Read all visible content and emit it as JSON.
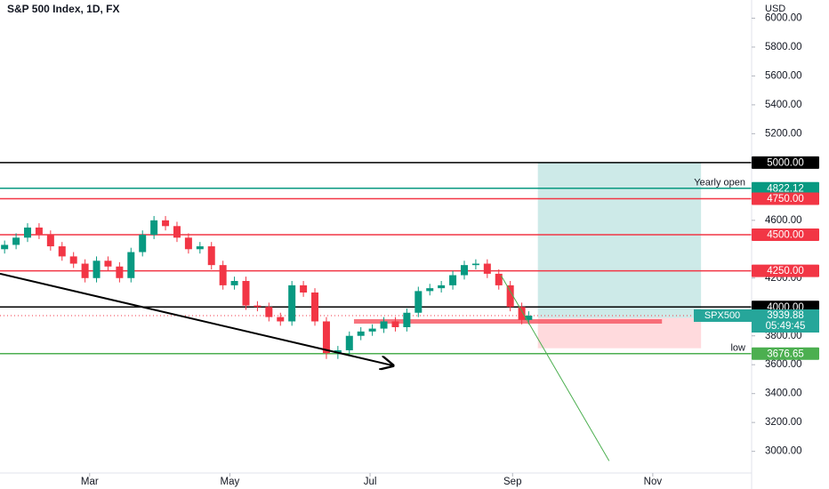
{
  "chart_data": {
    "type": "candlestick",
    "title": "S&P 500 Index, 1D, FX",
    "currency": "USD",
    "up_color": "#089981",
    "down_color": "#f23645",
    "x": [
      22,
      27,
      32,
      37,
      42,
      47,
      52,
      57,
      62,
      67,
      72,
      77,
      82,
      87,
      92,
      97,
      102,
      107,
      112,
      117,
      122,
      127,
      132,
      137,
      142,
      147,
      152,
      157,
      162,
      167,
      172,
      177,
      182,
      187,
      192,
      197,
      202,
      207,
      212,
      217,
      222,
      227,
      232,
      237,
      242,
      247,
      250
    ],
    "open": [
      4400,
      4430,
      4480,
      4550,
      4500,
      4420,
      4350,
      4300,
      4200,
      4320,
      4280,
      4200,
      4380,
      4500,
      4600,
      4560,
      4480,
      4400,
      4420,
      4290,
      4150,
      4180,
      4010,
      4000,
      3930,
      3900,
      4150,
      4100,
      3900,
      3680,
      3700,
      3800,
      3830,
      3850,
      3900,
      3860,
      3960,
      4110,
      4130,
      4150,
      4220,
      4290,
      4300,
      4230,
      4150,
      4000,
      3910
    ],
    "high": [
      4460,
      4510,
      4580,
      4580,
      4530,
      4450,
      4380,
      4330,
      4350,
      4350,
      4310,
      4410,
      4530,
      4630,
      4630,
      4590,
      4510,
      4450,
      4450,
      4320,
      4210,
      4210,
      4040,
      4030,
      3960,
      4180,
      4180,
      4130,
      3930,
      3730,
      3830,
      3860,
      3880,
      3930,
      3930,
      3990,
      4140,
      4160,
      4180,
      4250,
      4320,
      4330,
      4330,
      4260,
      4180,
      4030,
      3970
    ],
    "low": [
      4370,
      4400,
      4450,
      4470,
      4390,
      4320,
      4270,
      4170,
      4170,
      4250,
      4170,
      4170,
      4350,
      4470,
      4530,
      4450,
      4370,
      4370,
      4260,
      4120,
      4120,
      3980,
      3970,
      3900,
      3870,
      3870,
      4070,
      3870,
      3640,
      3640,
      3670,
      3770,
      3800,
      3820,
      3830,
      3830,
      3930,
      4080,
      4100,
      4120,
      4190,
      4260,
      4200,
      4120,
      3970,
      3880,
      3880
    ],
    "close": [
      4430,
      4480,
      4550,
      4500,
      4420,
      4350,
      4300,
      4200,
      4320,
      4280,
      4200,
      4380,
      4500,
      4600,
      4560,
      4480,
      4400,
      4420,
      4290,
      4150,
      4180,
      4010,
      4000,
      3930,
      3900,
      4150,
      4100,
      3900,
      3680,
      3700,
      3800,
      3830,
      3850,
      3900,
      3860,
      3960,
      4110,
      4130,
      4150,
      4220,
      4290,
      4300,
      4230,
      4150,
      4000,
      3910,
      3939.88
    ],
    "xlim": [
      20,
      347
    ],
    "xticks": [
      {
        "value": 59,
        "label": "Mar"
      },
      {
        "value": 120,
        "label": "May"
      },
      {
        "value": 181,
        "label": "Jul"
      },
      {
        "value": 243,
        "label": "Sep"
      },
      {
        "value": 304,
        "label": "Nov"
      }
    ],
    "ylim": [
      2850,
      6126
    ],
    "yticks": [
      {
        "value": 6000,
        "label": "6000.00"
      },
      {
        "value": 5800,
        "label": "5800.00"
      },
      {
        "value": 5600,
        "label": "5600.00"
      },
      {
        "value": 5400,
        "label": "5400.00"
      },
      {
        "value": 5200,
        "label": "5200.00"
      },
      {
        "value": 4600,
        "label": "4600.00"
      },
      {
        "value": 4200,
        "label": "4200.00"
      },
      {
        "value": 3800,
        "label": "3800.00"
      },
      {
        "value": 3600,
        "label": "3600.00"
      },
      {
        "value": 3400,
        "label": "3400.00"
      },
      {
        "value": 3200,
        "label": "3200.00"
      },
      {
        "value": 3000,
        "label": "3000.00"
      }
    ],
    "levels": [
      {
        "value": 5000,
        "label": "5000.00",
        "color": "#000000"
      },
      {
        "value": 4822.12,
        "label": "4822.12",
        "color": "#089981",
        "note": "Yearly open"
      },
      {
        "value": 4750,
        "label": "4750.00",
        "color": "#f23645"
      },
      {
        "value": 4500,
        "label": "4500.00",
        "color": "#f23645"
      },
      {
        "value": 4250,
        "label": "4250.00",
        "color": "#f23645"
      },
      {
        "value": 4000,
        "label": "4000.00",
        "color": "#000000"
      },
      {
        "value": 3676.65,
        "label": "3676.65",
        "color": "#4caf50",
        "note": "low"
      }
    ],
    "last_price": {
      "name": "SPX500",
      "value": 3939.88,
      "countdown": "05:49:45",
      "color": "#26a69a"
    },
    "position": {
      "x": [
        254,
        325
      ],
      "target": 5000,
      "entry": 3924,
      "stop": 3714
    },
    "zone": {
      "x": [
        174,
        308
      ],
      "value": 3900,
      "color": "#f7525f"
    },
    "trendlines": [
      {
        "x": [
          20,
          191
        ],
        "y": [
          4230,
          3594
        ],
        "color": "#000000",
        "arrow": true
      },
      {
        "x": [
          238,
          285
        ],
        "y": [
          4218,
          2934
        ],
        "color": "#4caf50",
        "arrow": false
      }
    ]
  }
}
